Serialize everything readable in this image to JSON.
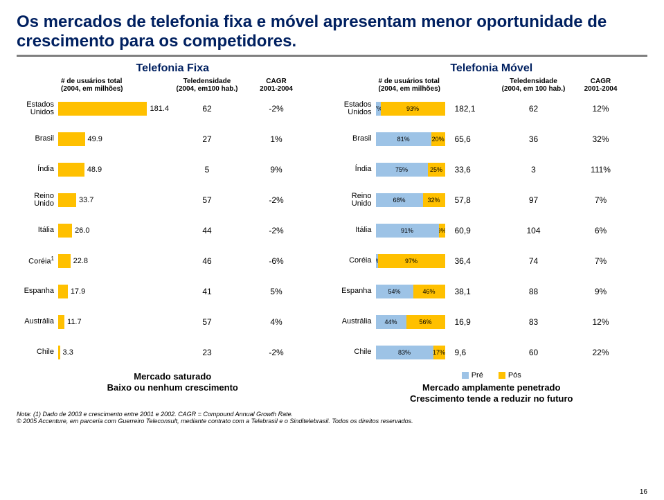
{
  "title": "Os mercados de telefonia fixa e móvel apresentam menor oportunidade de crescimento para os competidores.",
  "left": {
    "heading": "Telefonia Fixa",
    "col_headers": {
      "users": "# de usuários total\n(2004, em milhões)",
      "tele": "Teledensidade\n(2004, em100 hab.)",
      "cagr": "CAGR\n2001-2004"
    },
    "bar_color": "#ffc000",
    "max_value": 181.4,
    "rows": [
      {
        "label": "Estados\nUnidos",
        "value": 181.4,
        "tele": "62",
        "cagr": "-2%"
      },
      {
        "label": "Brasil",
        "value": 49.9,
        "tele": "27",
        "cagr": "1%"
      },
      {
        "label": "Índia",
        "value": 48.9,
        "tele": "5",
        "cagr": "9%"
      },
      {
        "label": "Reino\nUnido",
        "value": 33.7,
        "tele": "57",
        "cagr": "-2%"
      },
      {
        "label": "Itália",
        "value": 26.0,
        "value_display": "26.0",
        "tele": "44",
        "cagr": "-2%"
      },
      {
        "label": "Coréia",
        "sup": "1",
        "value": 22.8,
        "tele": "46",
        "cagr": "-6%"
      },
      {
        "label": "Espanha",
        "value": 17.9,
        "tele": "41",
        "cagr": "5%"
      },
      {
        "label": "Austrália",
        "value": 11.7,
        "tele": "57",
        "cagr": "4%"
      },
      {
        "label": "Chile",
        "value": 3.3,
        "tele": "23",
        "cagr": "-2%"
      }
    ],
    "footer": "Mercado saturado\nBaixo ou nenhum crescimento"
  },
  "right": {
    "heading": "Telefonia Móvel",
    "col_headers": {
      "users": "# de usuários total\n(2004, em milhões)",
      "tele": "Teledensidade\n(2004, em 100 hab.)",
      "cagr": "CAGR\n2001-2004"
    },
    "colors": {
      "pre": "#9dc3e6",
      "pos": "#ffc000"
    },
    "legend": {
      "pre": "Pré",
      "pos": "Pós"
    },
    "rows": [
      {
        "label": "Estados\nUnidos",
        "pre": 7,
        "pos": 93,
        "users": "182,1",
        "tele": "62",
        "cagr": "12%"
      },
      {
        "label": "Brasil",
        "pre": 81,
        "pos": 20,
        "users": "65,6",
        "tele": "36",
        "cagr": "32%"
      },
      {
        "label": "Índia",
        "pre": 75,
        "pos": 25,
        "users": "33,6",
        "tele": "3",
        "cagr": "111%"
      },
      {
        "label": "Reino\nUnido",
        "pre": 68,
        "pos": 32,
        "users": "57,8",
        "tele": "97",
        "cagr": "7%"
      },
      {
        "label": "Itália",
        "pre": 91,
        "pos": 9,
        "users": "60,9",
        "tele": "104",
        "cagr": "6%"
      },
      {
        "label": "Coréia",
        "pre": 3,
        "pos": 97,
        "users": "36,4",
        "tele": "74",
        "cagr": "7%"
      },
      {
        "label": "Espanha",
        "pre": 54,
        "pos": 46,
        "users": "38,1",
        "tele": "88",
        "cagr": "9%"
      },
      {
        "label": "Austrália",
        "pre": 44,
        "pos": 56,
        "users": "16,9",
        "tele": "83",
        "cagr": "12%"
      },
      {
        "label": "Chile",
        "pre": 83,
        "pos": 17,
        "users": "9,6",
        "tele": "60",
        "cagr": "22%"
      }
    ],
    "footer": "Mercado amplamente penetrado\nCrescimento tende a reduzir no futuro"
  },
  "notes": [
    "Nota: (1) Dado de 2003 e crescimento entre 2001 e 2002. CAGR = Compound Annual Growth Rate.",
    "© 2005 Accenture, em parceria com Guerreiro Teleconsult, mediante contrato com a Telebrasil e o Sinditelebrasil. Todos os direitos reservados."
  ],
  "page": "16"
}
